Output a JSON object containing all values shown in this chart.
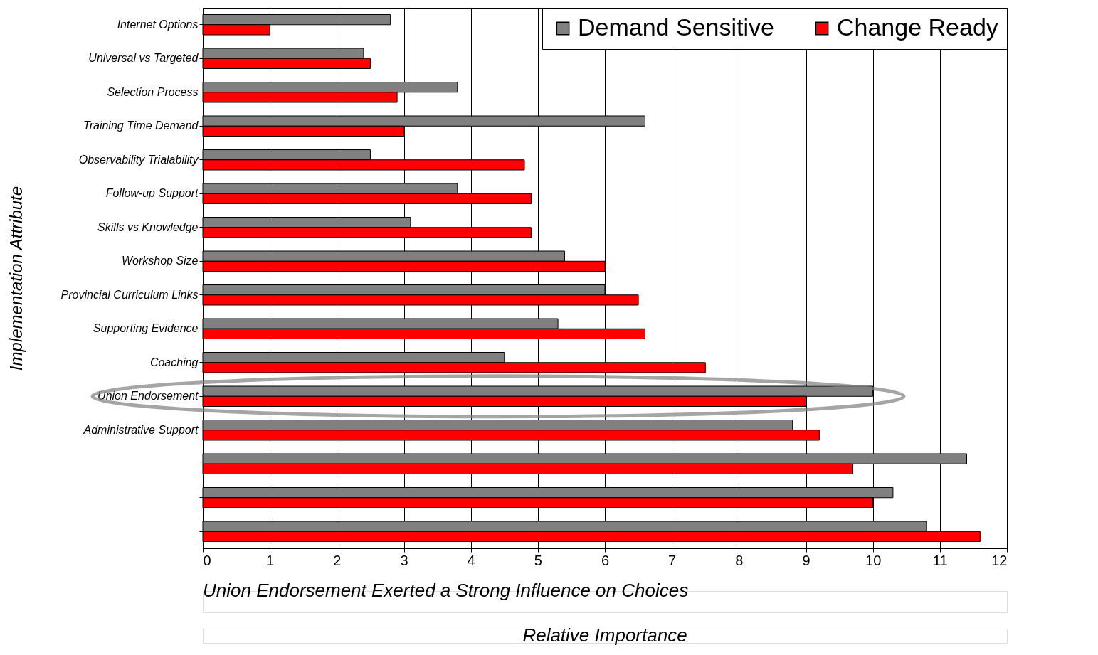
{
  "chart_data": {
    "type": "bar",
    "orientation": "horizontal",
    "xlabel": "Relative Importance",
    "ylabel": "Implementation Attribute",
    "categories": [
      "Internet Options",
      "Universal vs Targeted",
      "Selection Process",
      "Training Time Demand",
      "Observability Trialability",
      "Follow-up Support",
      "Skills vs Knowledge",
      "Workshop Size",
      "Provincial Curriculum Links",
      "Supporting Evidence",
      "Coaching",
      "Union Endorsement",
      "Administrative Support",
      null,
      null,
      null
    ],
    "series": [
      {
        "name": "Demand Sensitive",
        "color": "#808080",
        "values": [
          2.8,
          2.4,
          3.8,
          6.6,
          2.5,
          3.8,
          3.1,
          5.4,
          6.0,
          5.3,
          4.5,
          10.0,
          8.8,
          11.4,
          10.3,
          10.8
        ]
      },
      {
        "name": "Change Ready",
        "color": "#ff0000",
        "values": [
          1.0,
          2.5,
          2.9,
          3.0,
          4.8,
          4.9,
          4.9,
          6.0,
          6.5,
          6.6,
          7.5,
          9.0,
          9.2,
          9.7,
          10.0,
          11.6
        ]
      }
    ],
    "xlim": [
      0,
      12
    ],
    "xticks": [
      0,
      1,
      2,
      3,
      4,
      5,
      6,
      7,
      8,
      9,
      10,
      11,
      12
    ],
    "grid": "x",
    "legend": "top right",
    "annotations": [
      "Union Endorsement Exerted a Strong Influence on Choices"
    ]
  }
}
